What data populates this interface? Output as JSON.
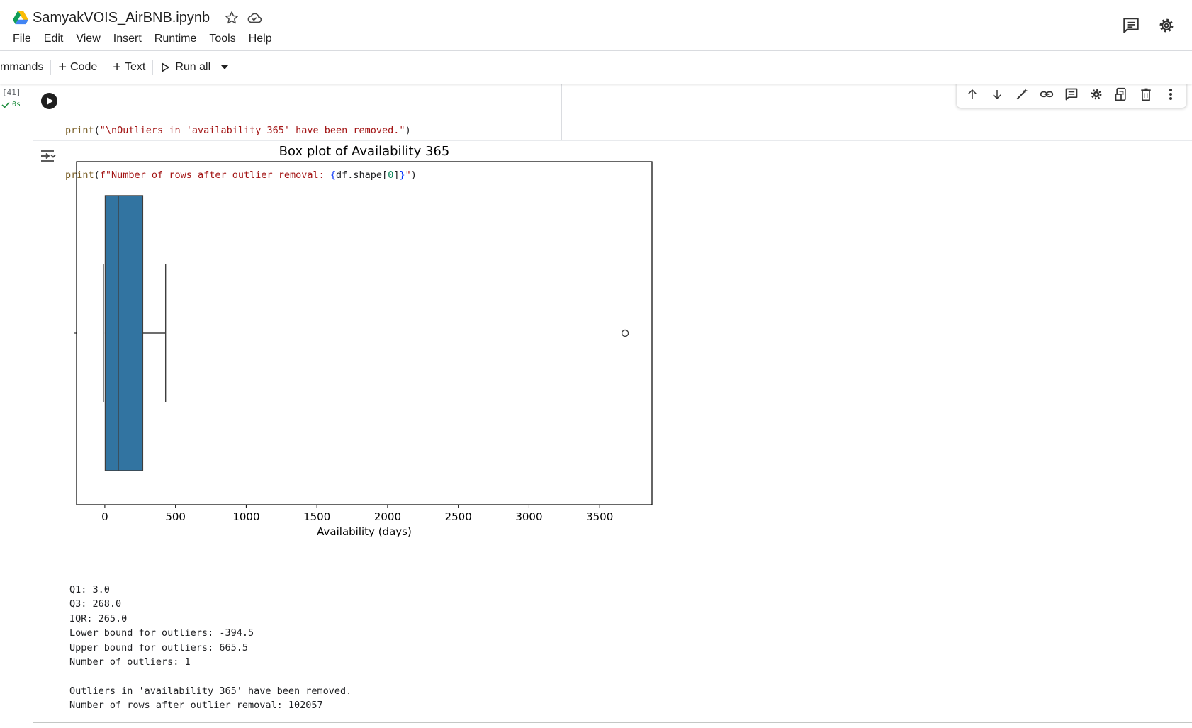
{
  "header": {
    "notebook_title": "SamyakVOIS_AirBNB.ipynb",
    "menu": [
      "File",
      "Edit",
      "View",
      "Insert",
      "Runtime",
      "Tools",
      "Help"
    ]
  },
  "toolbar": {
    "commands_label": "mmands",
    "code_label": "Code",
    "text_label": "Text",
    "run_all_label": "Run all"
  },
  "cell": {
    "execution_count": "[41]",
    "exec_time": "0s",
    "code": [
      {
        "fn": "print",
        "open": "(",
        "str": "\"\\nOutliers in 'availability 365' have been removed.\"",
        "close": ")"
      },
      {
        "fn": "print",
        "open": "(",
        "fstr_a": "f\"Number of rows after outlier removal: ",
        "brace_open": "{",
        "expr": "df.shape[",
        "num": "0",
        "expr2": "]",
        "brace_close": "}",
        "fstr_b": "\"",
        "close": ")"
      }
    ],
    "output_lines": [
      "Q1: 3.0",
      "Q3: 268.0",
      "IQR: 265.0",
      "Lower bound for outliers: -394.5",
      "Upper bound for outliers: 665.5",
      "Number of outliers: 1",
      "",
      "Outliers in 'availability 365' have been removed.",
      "Number of rows after outlier removal: 102057"
    ]
  },
  "colors": {
    "box_fill": "#3274a1",
    "box_edge": "#3d3d3d",
    "code_string": "#a31515",
    "code_function": "#795e26",
    "code_brace": "#0431fa",
    "success": "#1e8e3e"
  },
  "chart_data": {
    "type": "box",
    "title": "Box plot of Availability 365",
    "xlabel": "Availability (days)",
    "xlim": [
      -200,
      3870
    ],
    "xticks": [
      0,
      500,
      1000,
      1500,
      2000,
      2500,
      3000,
      3500
    ],
    "box": {
      "q1": 3,
      "median": 95,
      "q3": 268,
      "whisker_low": 0,
      "whisker_high": 430
    },
    "outliers": [
      3680
    ]
  }
}
